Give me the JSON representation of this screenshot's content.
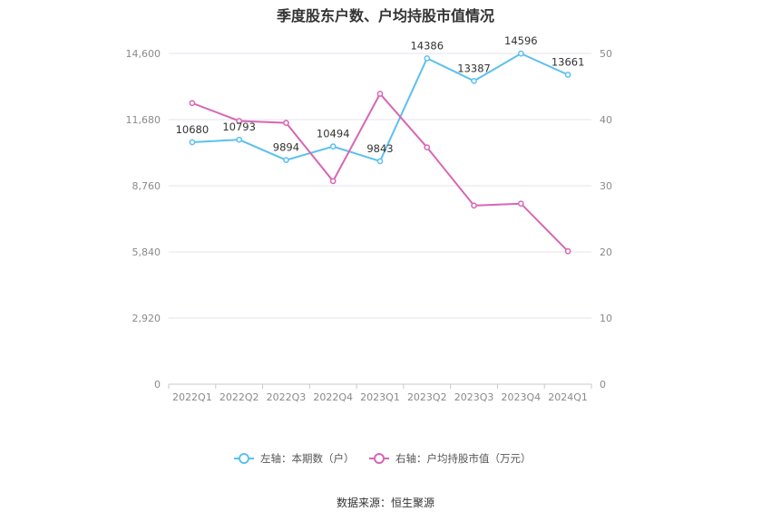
{
  "chart_data": {
    "type": "line",
    "title": "季度股东户数、户均持股市值情况",
    "categories": [
      "2022Q1",
      "2022Q2",
      "2022Q3",
      "2022Q4",
      "2023Q1",
      "2023Q2",
      "2023Q3",
      "2023Q4",
      "2024Q1"
    ],
    "series": [
      {
        "name": "左轴：本期数（户）",
        "axis": "left",
        "color": "#5bc0f0",
        "values": [
          10680,
          10793,
          9894,
          10494,
          9843,
          14386,
          13387,
          14596,
          13661
        ],
        "labels": [
          "10680",
          "10793",
          "9894",
          "10494",
          "9843",
          "14386",
          "13387",
          "14596",
          "13661"
        ]
      },
      {
        "name": "右轴：户均持股市值（万元）",
        "axis": "right",
        "color": "#d766b5",
        "values": [
          42.5,
          39.8,
          39.5,
          30.7,
          43.9,
          35.8,
          27.0,
          27.3,
          20.1
        ]
      }
    ],
    "left_axis": {
      "ticks": [
        "0",
        "2,920",
        "5,840",
        "8,760",
        "11,680",
        "14,600"
      ],
      "ylim": [
        0,
        14600
      ]
    },
    "right_axis": {
      "ticks": [
        "0",
        "10",
        "20",
        "30",
        "40",
        "50"
      ],
      "ylim": [
        0,
        50
      ]
    },
    "grid": true,
    "legend_position": "bottom"
  },
  "source": "数据来源：恒生聚源"
}
